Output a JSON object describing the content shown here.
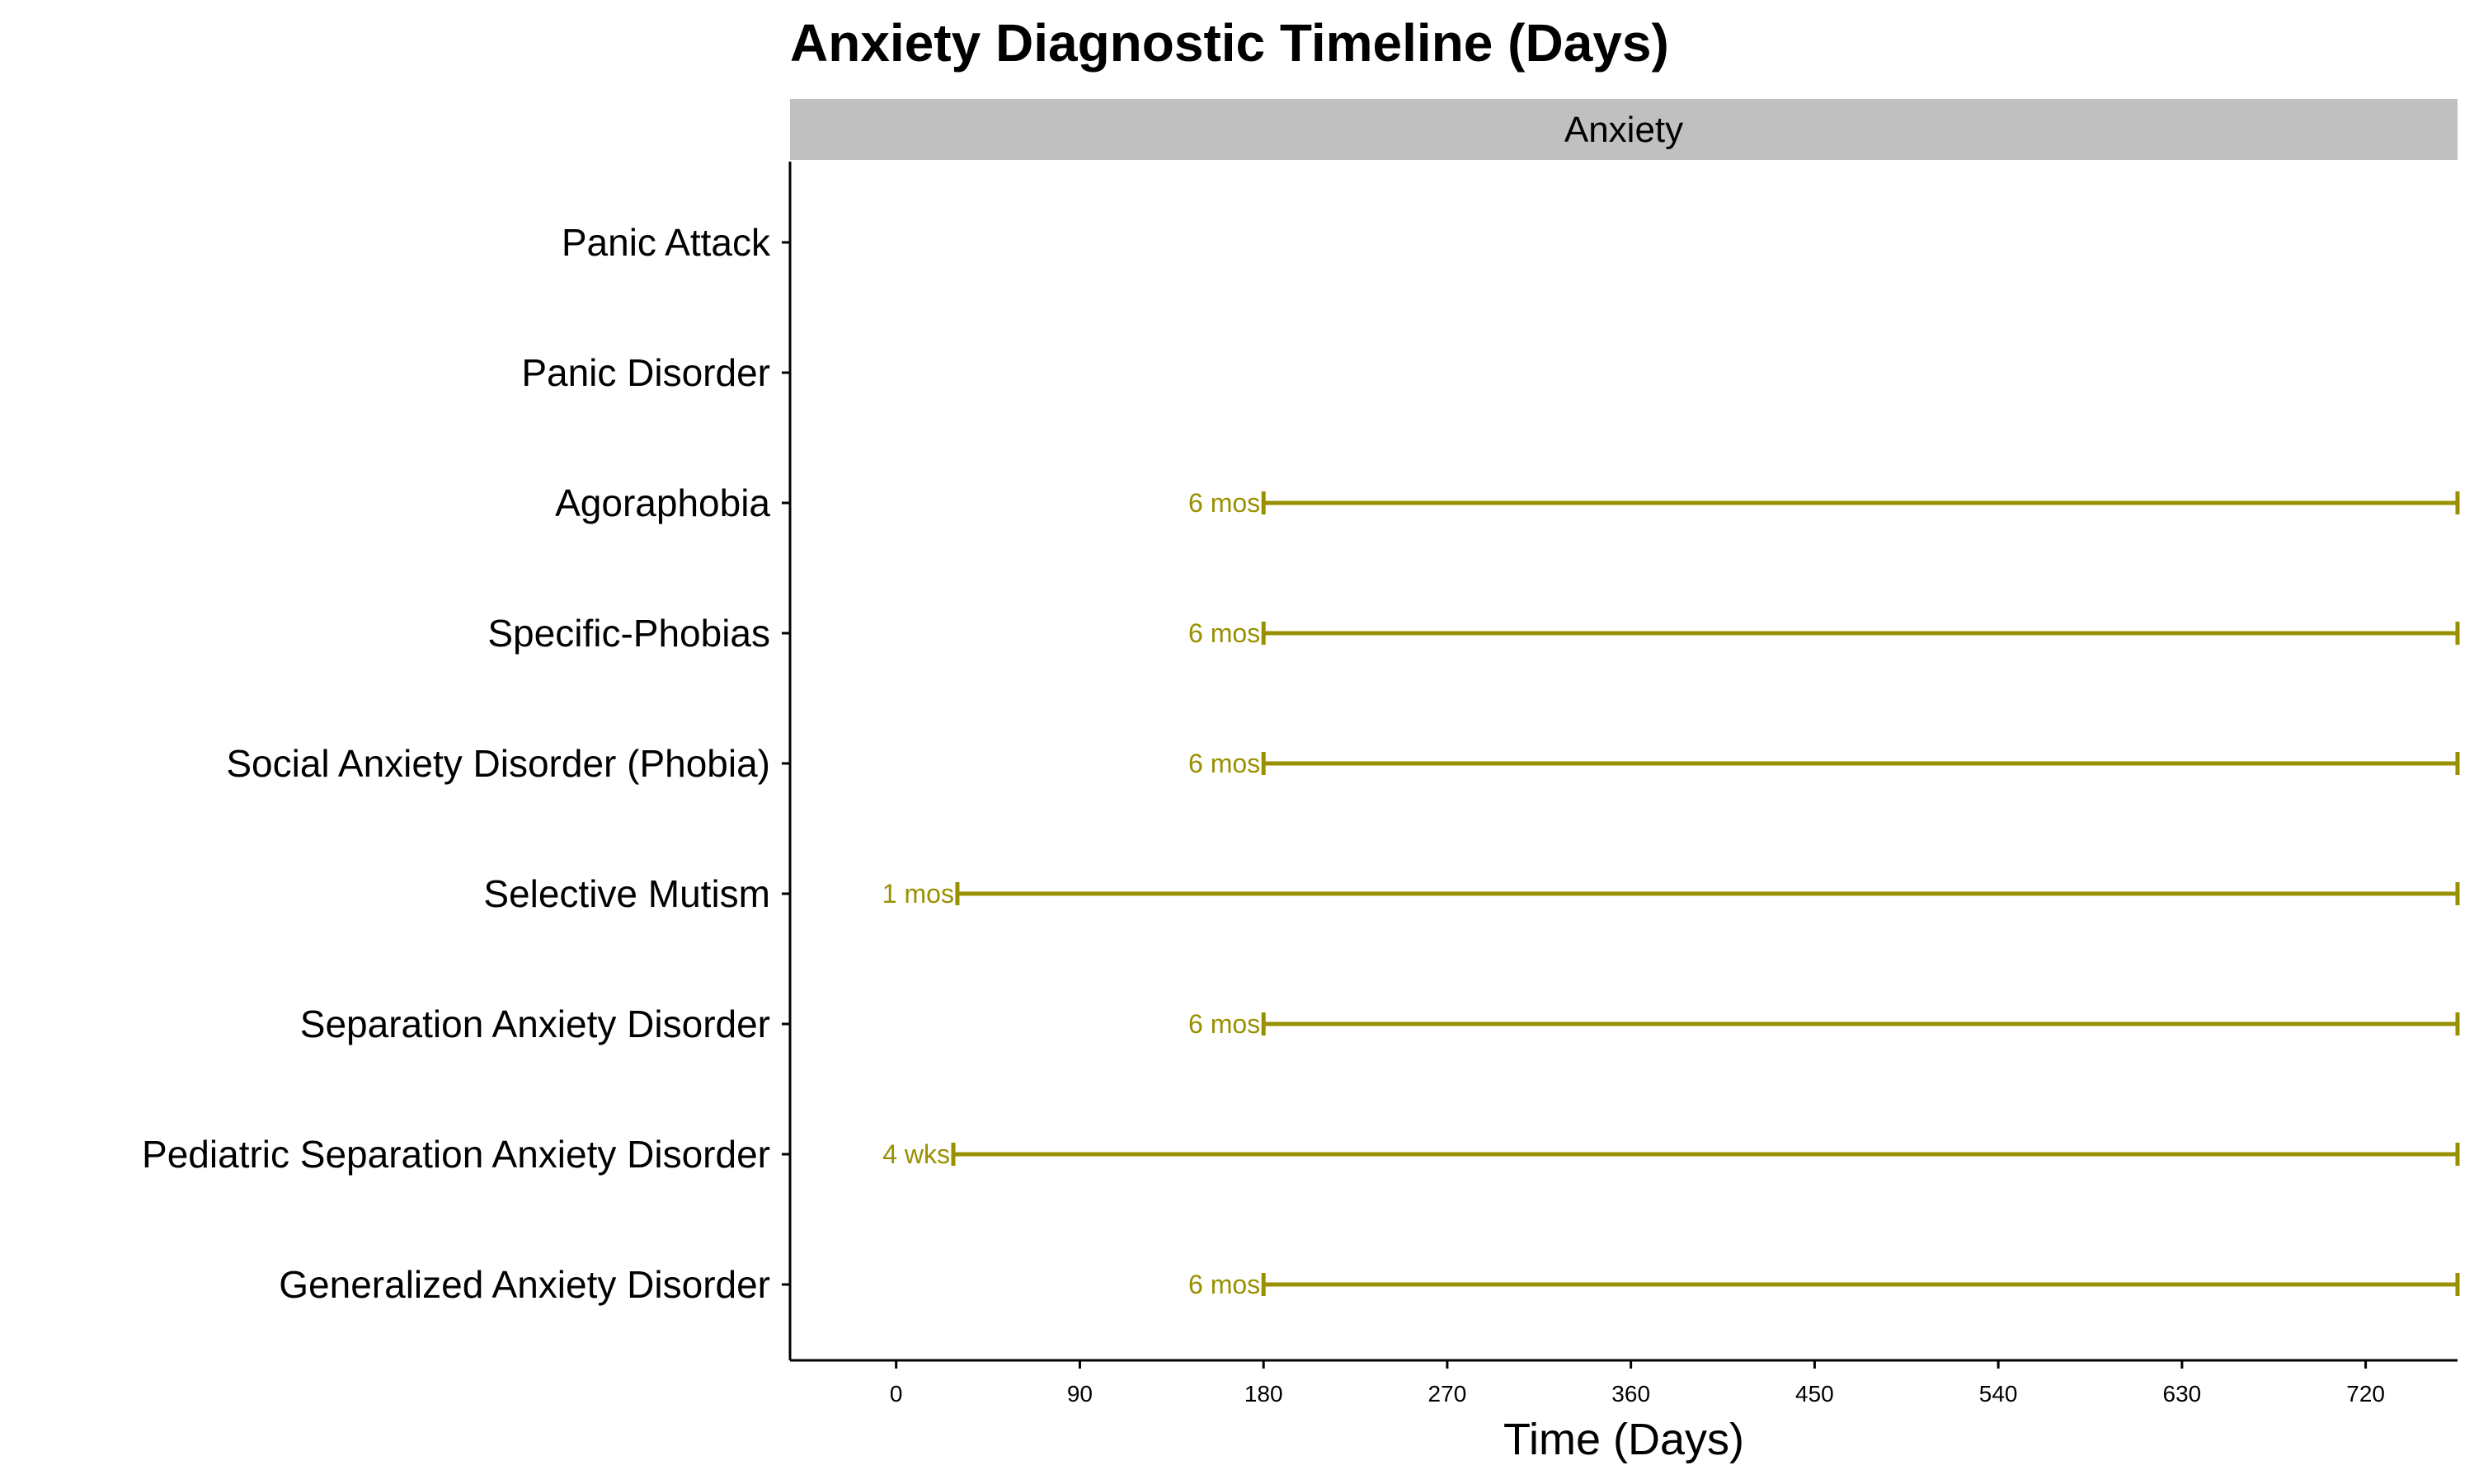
{
  "chart_data": {
    "type": "timeline",
    "title": "Anxiety Diagnostic Timeline (Days)",
    "facet": "Anxiety",
    "xlabel": "Time (Days)",
    "ylabel": "",
    "xlim": [
      -52,
      765
    ],
    "x_ticks": [
      0,
      90,
      180,
      270,
      360,
      450,
      540,
      630,
      720
    ],
    "series_color": "#999000",
    "categories": [
      "Panic Attack",
      "Panic Disorder",
      "Agoraphobia",
      "Specific-Phobias",
      "Social Anxiety Disorder (Phobia)",
      "Selective Mutism",
      "Separation Anxiety Disorder",
      "Pediatric Separation Anxiety Disorder",
      "Generalized Anxiety Disorder"
    ],
    "segments": [
      {
        "category": "Panic Attack",
        "start": null,
        "end": null,
        "label": ""
      },
      {
        "category": "Panic Disorder",
        "start": null,
        "end": null,
        "label": ""
      },
      {
        "category": "Agoraphobia",
        "start": 180,
        "end": 765,
        "label": "6 mos"
      },
      {
        "category": "Specific-Phobias",
        "start": 180,
        "end": 765,
        "label": "6 mos"
      },
      {
        "category": "Social Anxiety Disorder (Phobia)",
        "start": 180,
        "end": 765,
        "label": "6 mos"
      },
      {
        "category": "Selective Mutism",
        "start": 30,
        "end": 765,
        "label": "1 mos"
      },
      {
        "category": "Separation Anxiety Disorder",
        "start": 180,
        "end": 765,
        "label": "6 mos"
      },
      {
        "category": "Pediatric Separation Anxiety Disorder",
        "start": 28,
        "end": 765,
        "label": "4 wks"
      },
      {
        "category": "Generalized Anxiety Disorder",
        "start": 180,
        "end": 765,
        "label": "6 mos"
      }
    ]
  }
}
